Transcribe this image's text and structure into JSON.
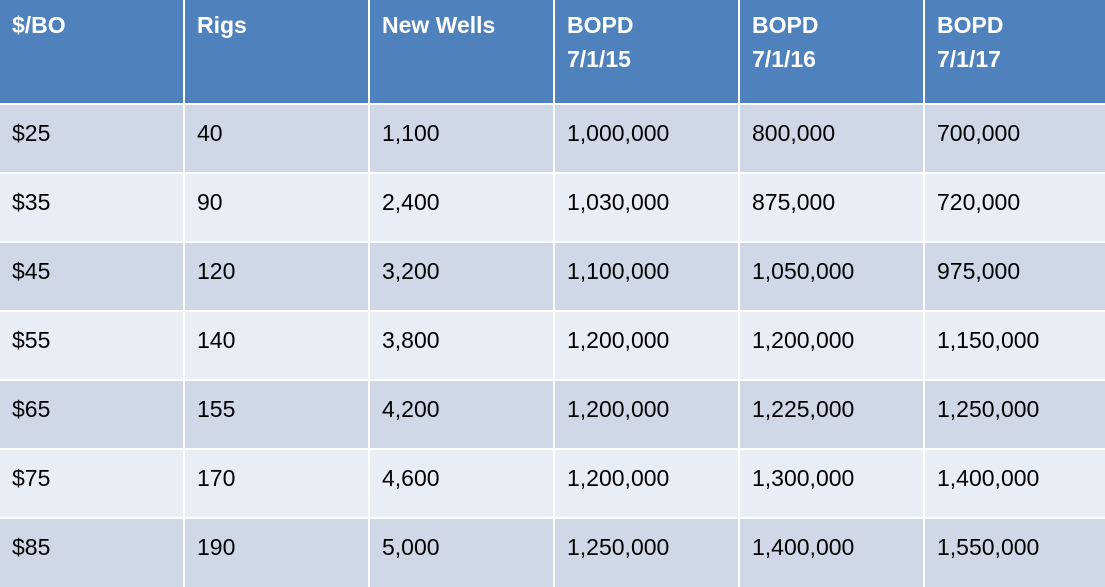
{
  "chart_data": {
    "type": "table",
    "columns": [
      {
        "lines": [
          "$/BO"
        ]
      },
      {
        "lines": [
          "Rigs"
        ]
      },
      {
        "lines": [
          "New Wells"
        ]
      },
      {
        "lines": [
          "BOPD",
          "7/1/15"
        ]
      },
      {
        "lines": [
          "BOPD",
          "7/1/16"
        ]
      },
      {
        "lines": [
          "BOPD",
          "7/1/17"
        ]
      }
    ],
    "rows": [
      [
        "$25",
        "40",
        "1,100",
        "1,000,000",
        "800,000",
        "700,000"
      ],
      [
        "$35",
        "90",
        "2,400",
        "1,030,000",
        "875,000",
        "720,000"
      ],
      [
        "$45",
        "120",
        "3,200",
        "1,100,000",
        "1,050,000",
        "975,000"
      ],
      [
        "$55",
        "140",
        "3,800",
        "1,200,000",
        "1,200,000",
        "1,150,000"
      ],
      [
        "$65",
        "155",
        "4,200",
        "1,200,000",
        "1,225,000",
        "1,250,000"
      ],
      [
        "$75",
        "170",
        "4,600",
        "1,200,000",
        "1,300,000",
        "1,400,000"
      ],
      [
        "$85",
        "190",
        "5,000",
        "1,250,000",
        "1,400,000",
        "1,550,000"
      ]
    ],
    "colors": {
      "header_bg": "#4f81bd",
      "header_text": "#ffffff",
      "row_odd_bg": "#d0d8e8",
      "row_even_bg": "#e9edf4",
      "border": "#ffffff"
    }
  }
}
